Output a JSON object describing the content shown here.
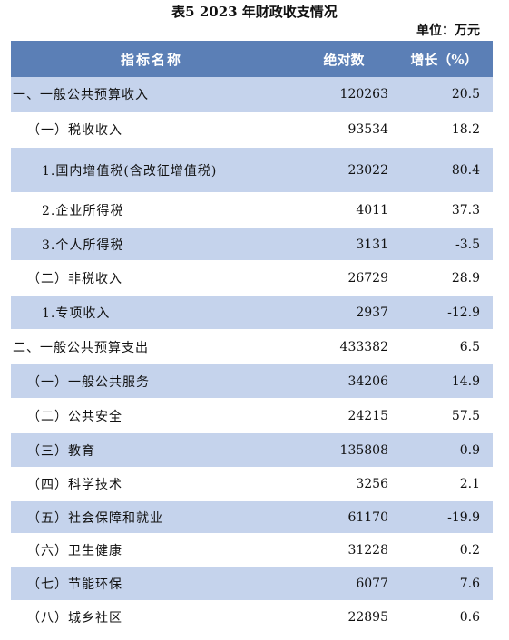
{
  "title": "表5   2023 年财政收支情况",
  "unit": "单位：万元",
  "headers": [
    "指标名称",
    "绝对数",
    "增长（%）"
  ],
  "rows": [
    {
      "name": "一、一般公共预算收入",
      "value": "120263",
      "growth": "20.5"
    },
    {
      "name": "（一）税收收入",
      "value": "93534",
      "growth": "18.2"
    },
    {
      "name": "1.国内增值税(含改征增值税)",
      "value": "23022",
      "growth": "80.4"
    },
    {
      "name": "2.企业所得税",
      "value": "4011",
      "growth": "37.3"
    },
    {
      "name": "3.个人所得税",
      "value": "3131",
      "growth": "-3.5"
    },
    {
      "name": "（二）非税收入",
      "value": "26729",
      "growth": "28.9"
    },
    {
      "name": "1.专项收入",
      "value": "2937",
      "growth": "-12.9"
    },
    {
      "name": "二、一般公共预算支出",
      "value": "433382",
      "growth": "6.5"
    },
    {
      "name": "（一）一般公共服务",
      "value": "34206",
      "growth": "14.9"
    },
    {
      "name": "（二）公共安全",
      "value": "24215",
      "growth": "57.5"
    },
    {
      "name": "（三）教育",
      "value": "135808",
      "growth": "0.9"
    },
    {
      "name": "（四）科学技术",
      "value": "3256",
      "growth": "2.1"
    },
    {
      "name": "（五）社会保障和就业",
      "value": "61170",
      "growth": "-19.9"
    },
    {
      "name": "（六）卫生健康",
      "value": "31228",
      "growth": "0.2"
    },
    {
      "name": "（七）节能环保",
      "value": "6077",
      "growth": "7.6"
    },
    {
      "name": "（八）城乡社区",
      "value": "22895",
      "growth": "0.6"
    }
  ],
  "colors": {
    "header_bg": "#5b7fb6",
    "stripe_bg": "#c5d3ec"
  }
}
